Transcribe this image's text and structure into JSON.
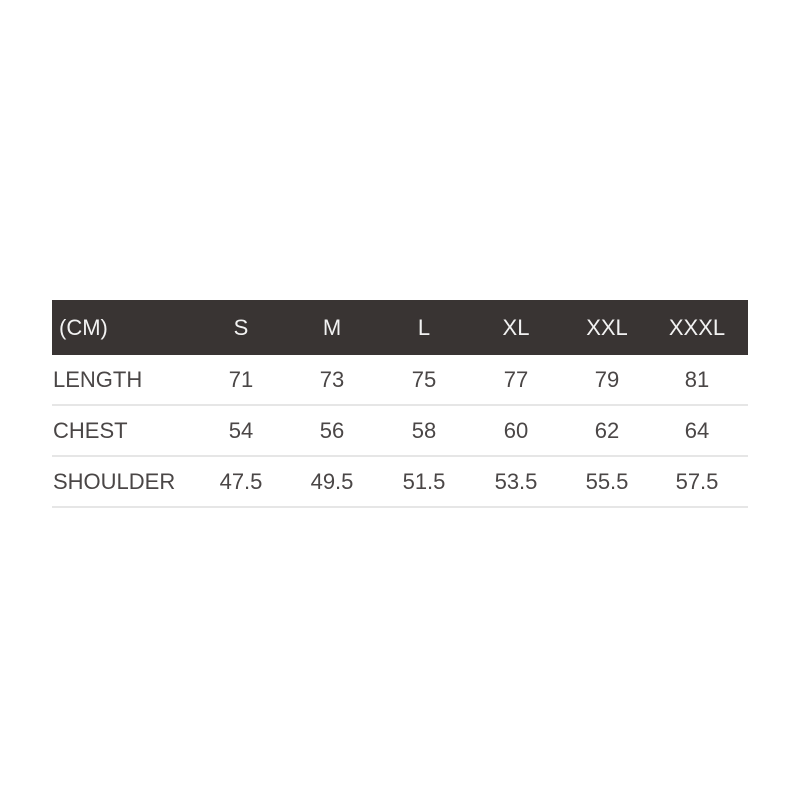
{
  "table": {
    "unit_label": "(CM)",
    "sizes": [
      "S",
      "M",
      "L",
      "XL",
      "XXL",
      "XXXL"
    ],
    "rows": [
      {
        "label": "LENGTH",
        "values": [
          "71",
          "73",
          "75",
          "77",
          "79",
          "81"
        ]
      },
      {
        "label": "CHEST",
        "values": [
          "54",
          "56",
          "58",
          "60",
          "62",
          "64"
        ]
      },
      {
        "label": "SHOULDER",
        "values": [
          "47.5",
          "49.5",
          "51.5",
          "53.5",
          "55.5",
          "57.5"
        ]
      }
    ]
  },
  "colors": {
    "header_bg": "#393433",
    "header_text": "#f2f2f2",
    "text": "#4a4646",
    "divider": "#e6e6e6"
  }
}
